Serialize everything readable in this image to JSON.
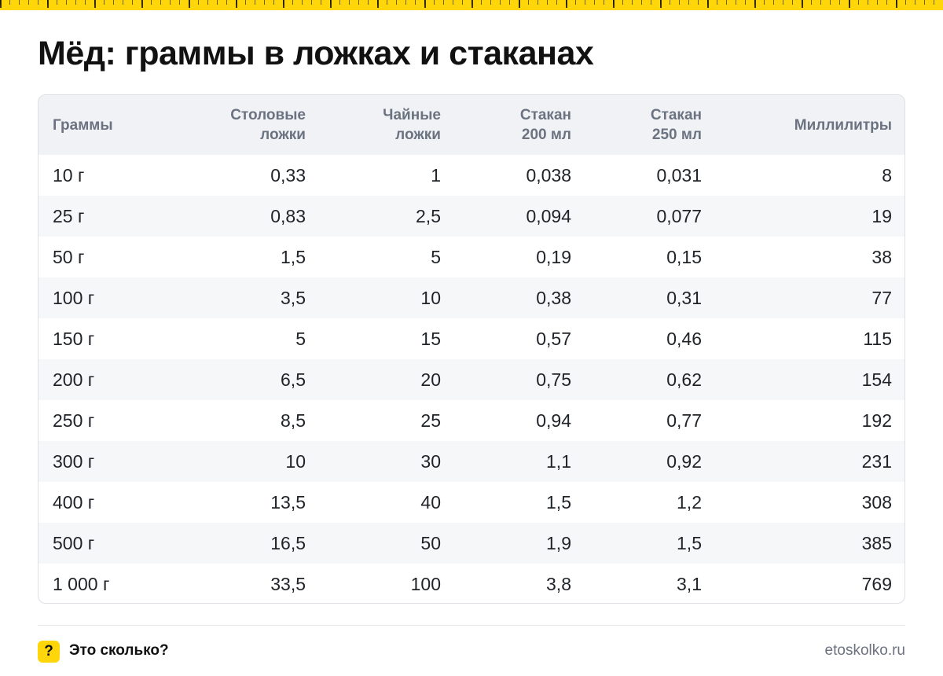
{
  "title": "Мёд: граммы в ложках и стаканах",
  "table": {
    "headers": [
      [
        "Граммы"
      ],
      [
        "Столовые",
        "ложки"
      ],
      [
        "Чайные",
        "ложки"
      ],
      [
        "Стакан",
        "200 мл"
      ],
      [
        "Стакан",
        "250 мл"
      ],
      [
        "Миллилитры"
      ]
    ],
    "rows": [
      [
        "10 г",
        "0,33",
        "1",
        "0,038",
        "0,031",
        "8"
      ],
      [
        "25 г",
        "0,83",
        "2,5",
        "0,094",
        "0,077",
        "19"
      ],
      [
        "50 г",
        "1,5",
        "5",
        "0,19",
        "0,15",
        "38"
      ],
      [
        "100 г",
        "3,5",
        "10",
        "0,38",
        "0,31",
        "77"
      ],
      [
        "150 г",
        "5",
        "15",
        "0,57",
        "0,46",
        "115"
      ],
      [
        "200 г",
        "6,5",
        "20",
        "0,75",
        "0,62",
        "154"
      ],
      [
        "250 г",
        "8,5",
        "25",
        "0,94",
        "0,77",
        "192"
      ],
      [
        "300 г",
        "10",
        "30",
        "1,1",
        "0,92",
        "231"
      ],
      [
        "400 г",
        "13,5",
        "40",
        "1,5",
        "1,2",
        "308"
      ],
      [
        "500 г",
        "16,5",
        "50",
        "1,9",
        "1,5",
        "385"
      ],
      [
        "1 000 г",
        "33,5",
        "100",
        "3,8",
        "3,1",
        "769"
      ]
    ]
  },
  "footer": {
    "badge": "?",
    "brand": "Это сколько?",
    "site": "etoskolko.ru"
  },
  "colors": {
    "accent": "#FFD60A",
    "header_bg": "#f0f2f5",
    "stripe_bg": "#f6f7f9",
    "header_text": "#6b7280"
  },
  "icons": {
    "top": "ruler-strip",
    "logo": "question-badge-icon"
  }
}
